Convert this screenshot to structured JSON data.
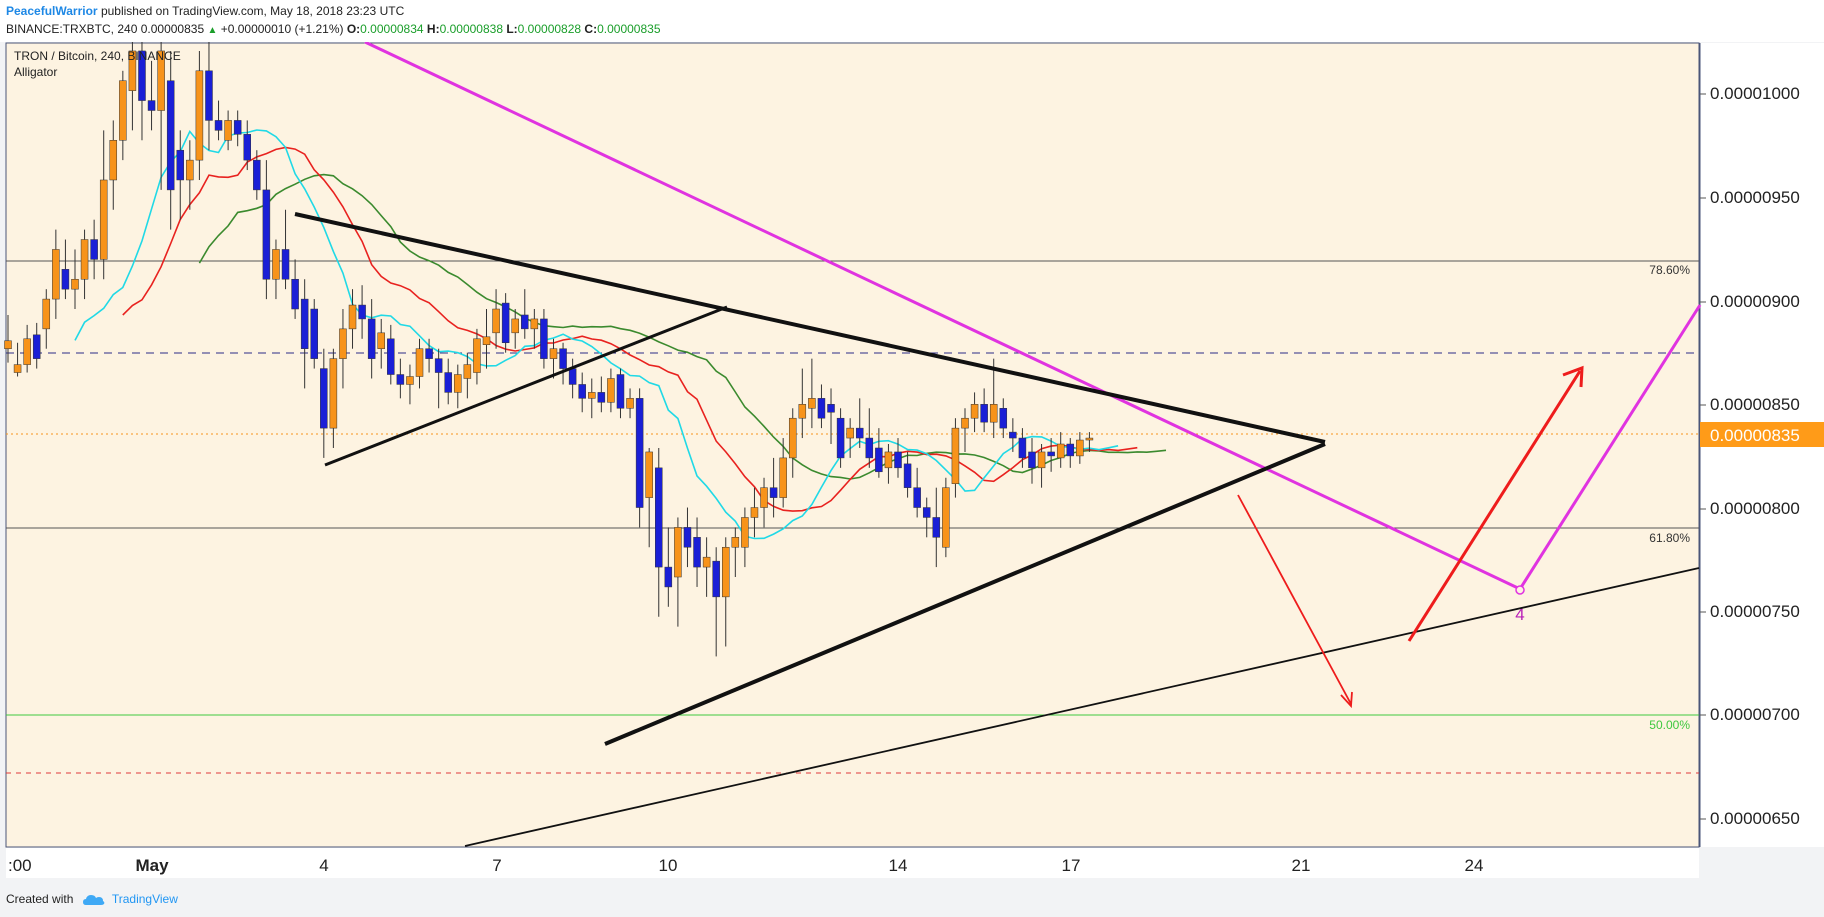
{
  "header": {
    "publisher": "PeacefulWarrior",
    "published_text": "published on TradingView.com, May 18, 2018 23:23 UTC",
    "symbol_line": "BINANCE:TRXBTC, 240",
    "last_price": "0.00000835",
    "change": "+0.00000010 (+1.21%)",
    "o_label": "O:",
    "o_value": "0.00000834",
    "h_label": "H:",
    "h_value": "0.00000838",
    "l_label": "L:",
    "l_value": "0.00000828",
    "c_label": "C:",
    "c_value": "0.00000835"
  },
  "legend": {
    "title": "TRON / Bitcoin, 240, BINANCE",
    "indicator": "Alligator"
  },
  "footer": {
    "created_with": "Created with",
    "brand": "TradingView"
  },
  "chart_data": {
    "type": "candlestick",
    "title": "TRON / Bitcoin, 240, BINANCE",
    "ylim": [
      6.29e-06,
      1.034e-05
    ],
    "price_ticks": [
      "0.00001000",
      "0.00000950",
      "0.00000900",
      "0.00000850",
      "0.00000800",
      "0.00000750",
      "0.00000700",
      "0.00000650"
    ],
    "current_price_label": "0.00000835",
    "time_ticks": [
      ":00",
      "May",
      "4",
      "7",
      "10",
      "14",
      "17",
      "21",
      "24"
    ],
    "fib_levels": [
      {
        "label": "78.60%",
        "price": 9.19e-06,
        "color": "#555555"
      },
      {
        "label": "61.80%",
        "price": 7.9e-06,
        "color": "#555555"
      },
      {
        "label": "50.00%",
        "price": 6.99e-06,
        "color": "#3ec83e"
      }
    ],
    "wave_label": "4",
    "colors": {
      "bull": "#f7931a",
      "bear": "#1a1fd6",
      "jaw": "#3b8a2e",
      "teeth": "#e8221f",
      "lips": "#20d9e6",
      "trend": "#111111",
      "magenta": "#e033e0",
      "arrow": "#ee1c1c",
      "background": "#fdf3e1",
      "price_tag": "#ff9b18",
      "dashed_resistance": "#2b2b88",
      "dashed_support": "#e03a3a"
    },
    "candles": [
      [
        8.8e-06,
        8.97e-06,
        8.73e-06,
        8.84e-06
      ],
      [
        8.68e-06,
        8.83e-06,
        8.66e-06,
        8.72e-06
      ],
      [
        8.72e-06,
        8.92e-06,
        8.68e-06,
        8.85e-06
      ],
      [
        8.87e-06,
        8.93e-06,
        8.7e-06,
        8.75e-06
      ],
      [
        8.9e-06,
        9.1e-06,
        8.8e-06,
        9.05e-06
      ],
      [
        9.05e-06,
        9.4e-06,
        8.95e-06,
        9.3e-06
      ],
      [
        9.2e-06,
        9.35e-06,
        9.05e-06,
        9.1e-06
      ],
      [
        9.1e-06,
        9.3e-06,
        9e-06,
        9.15e-06
      ],
      [
        9.15e-06,
        9.4e-06,
        9.05e-06,
        9.35e-06
      ],
      [
        9.35e-06,
        9.45e-06,
        9.15e-06,
        9.25e-06
      ],
      [
        9.25e-06,
        9.9e-06,
        9.15e-06,
        9.65e-06
      ],
      [
        9.65e-06,
        9.95e-06,
        9.5e-06,
        9.85e-06
      ],
      [
        9.85e-06,
        1.02e-05,
        9.75e-06,
        1.015e-05
      ],
      [
        1.01e-05,
        1.04e-05,
        9.9e-06,
        1.03e-05
      ],
      [
        1.03e-05,
        1.045e-05,
        9.85e-06,
        1.005e-05
      ],
      [
        1.005e-05,
        1.025e-05,
        9.9e-06,
        1e-05
      ],
      [
        1e-05,
        1.035e-05,
        9.6e-06,
        1.03e-05
      ],
      [
        1.015e-05,
        1.03e-05,
        9.4e-06,
        9.6e-06
      ],
      [
        9.8e-06,
        9.9e-06,
        9.45e-06,
        9.65e-06
      ],
      [
        9.65e-06,
        9.85e-06,
        9.5e-06,
        9.75e-06
      ],
      [
        9.75e-06,
        1.03e-05,
        9.65e-06,
        1.02e-05
      ],
      [
        1.02e-05,
        1.035e-05,
        9.8e-06,
        9.95e-06
      ],
      [
        9.95e-06,
        1.005e-05,
        9.85e-06,
        9.9e-06
      ],
      [
        9.85e-06,
        1e-05,
        9.8e-06,
        9.95e-06
      ],
      [
        9.95e-06,
        1e-05,
        9.82e-06,
        9.88e-06
      ],
      [
        9.88e-06,
        9.95e-06,
        9.7e-06,
        9.75e-06
      ],
      [
        9.75e-06,
        9.8e-06,
        9.55e-06,
        9.6e-06
      ],
      [
        9.6e-06,
        9.75e-06,
        9.05e-06,
        9.15e-06
      ],
      [
        9.15e-06,
        9.35e-06,
        9.05e-06,
        9.3e-06
      ],
      [
        9.3e-06,
        9.5e-06,
        9.1e-06,
        9.15e-06
      ],
      [
        9.15e-06,
        9.25e-06,
        8.95e-06,
        9e-06
      ],
      [
        9.05e-06,
        9.15e-06,
        8.6e-06,
        8.8e-06
      ],
      [
        9e-06,
        9.05e-06,
        8.7e-06,
        8.75e-06
      ],
      [
        8.7e-06,
        8.8e-06,
        8.25e-06,
        8.4e-06
      ],
      [
        8.4e-06,
        8.8e-06,
        8.3e-06,
        8.75e-06
      ],
      [
        8.75e-06,
        9e-06,
        8.6e-06,
        8.9e-06
      ],
      [
        8.9e-06,
        9.1e-06,
        8.8e-06,
        9.02e-06
      ],
      [
        9.02e-06,
        9.12e-06,
        8.85e-06,
        8.95e-06
      ],
      [
        8.95e-06,
        9.05e-06,
        8.65e-06,
        8.75e-06
      ],
      [
        8.8e-06,
        8.95e-06,
        8.7e-06,
        8.88e-06
      ],
      [
        8.85e-06,
        8.92e-06,
        8.62e-06,
        8.67e-06
      ],
      [
        8.67e-06,
        8.75e-06,
        8.55e-06,
        8.62e-06
      ],
      [
        8.62e-06,
        8.72e-06,
        8.52e-06,
        8.66e-06
      ],
      [
        8.66e-06,
        8.85e-06,
        8.6e-06,
        8.8e-06
      ],
      [
        8.8e-06,
        8.85e-06,
        8.68e-06,
        8.75e-06
      ],
      [
        8.75e-06,
        8.8e-06,
        8.5e-06,
        8.68e-06
      ],
      [
        8.68e-06,
        8.75e-06,
        8.52e-06,
        8.58e-06
      ],
      [
        8.58e-06,
        8.72e-06,
        8.5e-06,
        8.67e-06
      ],
      [
        8.65e-06,
        8.78e-06,
        8.55e-06,
        8.72e-06
      ],
      [
        8.68e-06,
        8.9e-06,
        8.62e-06,
        8.85e-06
      ],
      [
        8.82e-06,
        9e-06,
        8.7e-06,
        8.86e-06
      ],
      [
        8.88e-06,
        9.1e-06,
        8.8e-06,
        9e-06
      ],
      [
        9.03e-06,
        9.08e-06,
        8.78e-06,
        8.83e-06
      ],
      [
        8.88e-06,
        9e-06,
        8.8e-06,
        8.95e-06
      ],
      [
        8.97e-06,
        9.1e-06,
        8.85e-06,
        8.9e-06
      ],
      [
        8.9e-06,
        9e-06,
        8.8e-06,
        8.95e-06
      ],
      [
        8.95e-06,
        9e-06,
        8.7e-06,
        8.75e-06
      ],
      [
        8.75e-06,
        8.85e-06,
        8.65e-06,
        8.8e-06
      ],
      [
        8.8e-06,
        8.83e-06,
        8.62e-06,
        8.7e-06
      ],
      [
        8.7e-06,
        8.75e-06,
        8.55e-06,
        8.62e-06
      ],
      [
        8.62e-06,
        8.68e-06,
        8.48e-06,
        8.55e-06
      ],
      [
        8.55e-06,
        8.65e-06,
        8.45e-06,
        8.58e-06
      ],
      [
        8.58e-06,
        8.66e-06,
        8.48e-06,
        8.53e-06
      ],
      [
        8.53e-06,
        8.7e-06,
        8.48e-06,
        8.65e-06
      ],
      [
        8.67e-06,
        8.7e-06,
        8.45e-06,
        8.5e-06
      ],
      [
        8.5e-06,
        8.6e-06,
        8.45e-06,
        8.55e-06
      ],
      [
        8.55e-06,
        8.6e-06,
        7.9e-06,
        8e-06
      ],
      [
        8.05e-06,
        8.3e-06,
        7.8e-06,
        8.28e-06
      ],
      [
        8.2e-06,
        8.3e-06,
        7.45e-06,
        7.7e-06
      ],
      [
        7.7e-06,
        7.9e-06,
        7.5e-06,
        7.6e-06
      ],
      [
        7.65e-06,
        7.95e-06,
        7.4e-06,
        7.9e-06
      ],
      [
        7.9e-06,
        8e-06,
        7.7e-06,
        7.8e-06
      ],
      [
        7.85e-06,
        7.95e-06,
        7.6e-06,
        7.7e-06
      ],
      [
        7.7e-06,
        7.85e-06,
        7.55e-06,
        7.75e-06
      ],
      [
        7.73e-06,
        7.8e-06,
        7.25e-06,
        7.55e-06
      ],
      [
        7.55e-06,
        7.85e-06,
        7.3e-06,
        7.8e-06
      ],
      [
        7.8e-06,
        7.9e-06,
        7.65e-06,
        7.85e-06
      ],
      [
        7.8e-06,
        8e-06,
        7.7e-06,
        7.95e-06
      ],
      [
        7.95e-06,
        8.1e-06,
        7.85e-06,
        8e-06
      ],
      [
        8e-06,
        8.15e-06,
        7.9e-06,
        8.1e-06
      ],
      [
        8.1e-06,
        8.25e-06,
        7.95e-06,
        8.05e-06
      ],
      [
        8.05e-06,
        8.35e-06,
        8e-06,
        8.25e-06
      ],
      [
        8.25e-06,
        8.5e-06,
        8.15e-06,
        8.45e-06
      ],
      [
        8.45e-06,
        8.7e-06,
        8.35e-06,
        8.52e-06
      ],
      [
        8.5e-06,
        8.75e-06,
        8.4e-06,
        8.55e-06
      ],
      [
        8.55e-06,
        8.62e-06,
        8.4e-06,
        8.45e-06
      ],
      [
        8.52e-06,
        8.6e-06,
        8.32e-06,
        8.48e-06
      ],
      [
        8.45e-06,
        8.5e-06,
        8.2e-06,
        8.25e-06
      ],
      [
        8.35e-06,
        8.45e-06,
        8.25e-06,
        8.4e-06
      ],
      [
        8.4e-06,
        8.55e-06,
        8.3e-06,
        8.35e-06
      ],
      [
        8.35e-06,
        8.5e-06,
        8.2e-06,
        8.25e-06
      ],
      [
        8.3e-06,
        8.4e-06,
        8.15e-06,
        8.18e-06
      ],
      [
        8.2e-06,
        8.32e-06,
        8.12e-06,
        8.28e-06
      ],
      [
        8.28e-06,
        8.35e-06,
        8.15e-06,
        8.2e-06
      ],
      [
        8.22e-06,
        8.28e-06,
        8.05e-06,
        8.1e-06
      ],
      [
        8.1e-06,
        8.2e-06,
        7.95e-06,
        8e-06
      ],
      [
        8e-06,
        8.05e-06,
        7.85e-06,
        7.95e-06
      ],
      [
        7.95e-06,
        8.1e-06,
        7.7e-06,
        7.85e-06
      ],
      [
        7.8e-06,
        8.15e-06,
        7.75e-06,
        8.1e-06
      ],
      [
        8.12e-06,
        8.45e-06,
        8.05e-06,
        8.4e-06
      ],
      [
        8.4e-06,
        8.5e-06,
        8.28e-06,
        8.45e-06
      ],
      [
        8.45e-06,
        8.58e-06,
        8.38e-06,
        8.52e-06
      ],
      [
        8.52e-06,
        8.6e-06,
        8.38e-06,
        8.43e-06
      ],
      [
        8.43e-06,
        8.75e-06,
        8.35e-06,
        8.52e-06
      ],
      [
        8.5e-06,
        8.55e-06,
        8.35e-06,
        8.4e-06
      ],
      [
        8.38e-06,
        8.45e-06,
        8.28e-06,
        8.35e-06
      ],
      [
        8.35e-06,
        8.4e-06,
        8.2e-06,
        8.25e-06
      ],
      [
        8.28e-06,
        8.35e-06,
        8.12e-06,
        8.2e-06
      ],
      [
        8.2e-06,
        8.32e-06,
        8.1e-06,
        8.28e-06
      ],
      [
        8.28e-06,
        8.35e-06,
        8.18e-06,
        8.26e-06
      ],
      [
        8.25e-06,
        8.38e-06,
        8.2e-06,
        8.32e-06
      ],
      [
        8.32e-06,
        8.35e-06,
        8.2e-06,
        8.26e-06
      ],
      [
        8.26e-06,
        8.38e-06,
        8.22e-06,
        8.34e-06
      ],
      [
        8.34e-06,
        8.38e-06,
        8.28e-06,
        8.35e-06
      ]
    ]
  }
}
